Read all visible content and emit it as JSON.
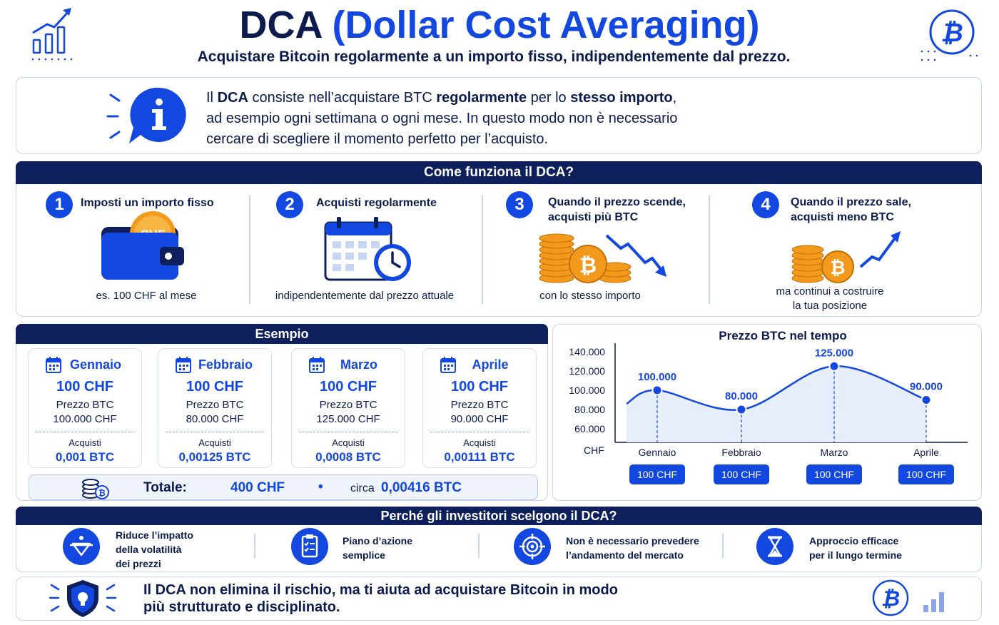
{
  "header": {
    "title_dark": "DCA",
    "title_blue": "(Dollar Cost Averaging)",
    "subtitle": "Acquistare Bitcoin regolarmente a un importo fisso, indipendentemente dal prezzo."
  },
  "info": {
    "line1_a": "Il ",
    "line1_b": "DCA",
    "line1_c": " consiste nell’acquistare BTC ",
    "line1_d": "regolarmente",
    "line1_e": " per lo ",
    "line1_f": "stesso importo",
    "line1_g": ",",
    "line2": "ad esempio ogni settimana o ogni mese. In questo modo non è necessario",
    "line3": "cercare di scegliere il momento perfetto per l’acquisto."
  },
  "how": {
    "title": "Come funziona il DCA?",
    "steps": [
      {
        "num": "1",
        "title": "Imposti un importo fisso",
        "caption": "es. 100 CHF al mese"
      },
      {
        "num": "2",
        "title": "Acquisti regolarmente",
        "caption": "indipendentemente dal prezzo attuale"
      },
      {
        "num": "3",
        "title_l1": "Quando il prezzo scende,",
        "title_l2": "acquisti più BTC",
        "caption": "con lo stesso importo"
      },
      {
        "num": "4",
        "title_l1": "Quando il prezzo sale,",
        "title_l2": "acquisti meno BTC",
        "caption_l1": "ma continui a costruire",
        "caption_l2": "la tua posizione"
      }
    ],
    "wallet_label": "CHF"
  },
  "example": {
    "title": "Esempio",
    "months": [
      {
        "name": "Gennaio",
        "amount": "100 CHF",
        "price_label": "Prezzo BTC",
        "price": "100.000 CHF",
        "buy_label": "Acquisti",
        "btc": "0,001 BTC"
      },
      {
        "name": "Febbraio",
        "amount": "100 CHF",
        "price_label": "Prezzo BTC",
        "price": "80.000 CHF",
        "buy_label": "Acquisti",
        "btc": "0,00125 BTC"
      },
      {
        "name": "Marzo",
        "amount": "100 CHF",
        "price_label": "Prezzo BTC",
        "price": "125.000 CHF",
        "buy_label": "Acquisti",
        "btc": "0,0008 BTC"
      },
      {
        "name": "Aprile",
        "amount": "100 CHF",
        "price_label": "Prezzo BTC",
        "price": "90.000 CHF",
        "buy_label": "Acquisti",
        "btc": "0,00111 BTC"
      }
    ],
    "total_label": "Totale:",
    "total_amount": "400 CHF",
    "total_sep": "•",
    "total_circa": "circa",
    "total_btc": "0,00416 BTC"
  },
  "chart_data": {
    "type": "line",
    "title": "Prezzo BTC nel tempo",
    "ylabel": "CHF",
    "categories": [
      "Gennaio",
      "Febbraio",
      "Marzo",
      "Aprile"
    ],
    "values": [
      100000,
      80000,
      125000,
      90000
    ],
    "value_labels": [
      "100.000",
      "80.000",
      "125.000",
      "90.000"
    ],
    "y_ticks": [
      "140.000",
      "120.000",
      "100.000",
      "80.000",
      "60.000"
    ],
    "ylim": [
      60000,
      140000
    ],
    "chips": [
      "100 CHF",
      "100 CHF",
      "100 CHF",
      "100 CHF"
    ],
    "color": "#1247e0"
  },
  "why": {
    "title": "Perché gli investitori scelgono il DCA?",
    "items": [
      {
        "l1": "Riduce l’impatto",
        "l2": "della volatilità",
        "l3": "dei prezzi",
        "icon": "scale-icon"
      },
      {
        "l1": "Piano d’azione",
        "l2": "semplice",
        "icon": "checklist-icon"
      },
      {
        "l1": "Non è necessario prevedere",
        "l2": "l’andamento del mercato",
        "icon": "target-icon"
      },
      {
        "l1": "Approccio efficace",
        "l2": "per il lungo termine",
        "icon": "hourglass-icon"
      }
    ]
  },
  "footer": {
    "l1_a": "Il ",
    "l1_b": "DCA",
    "l1_c": " non elimina il rischio, ma ti aiuta ad acquistare Bitcoin in modo",
    "l2": "più strutturato e disciplinato."
  },
  "colors": {
    "navy": "#0d1f5c",
    "blue": "#1247e0",
    "orange": "#f39a1c"
  }
}
